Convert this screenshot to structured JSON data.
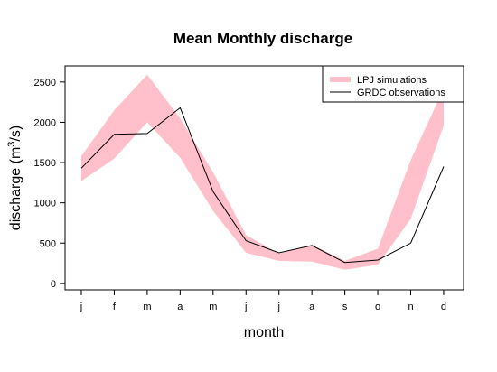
{
  "chart_data": {
    "type": "area",
    "title": "Mean Monthly discharge",
    "xlabel": "month",
    "ylabel": "discharge (m",
    "ylabel_sup": "3",
    "ylabel_suffix": "/s)",
    "categories": [
      "j",
      "f",
      "m",
      "a",
      "m",
      "j",
      "j",
      "a",
      "s",
      "o",
      "n",
      "d"
    ],
    "yticks": [
      0,
      500,
      1000,
      1500,
      2000,
      2500
    ],
    "ylim": [
      -80,
      2700
    ],
    "grid": false,
    "legend_position": "top-right",
    "colors": {
      "band": "#ffc0cb",
      "line": "#000000"
    },
    "series": [
      {
        "name": "LPJ simulations",
        "kind": "band",
        "lower": [
          1270,
          1550,
          2000,
          1560,
          900,
          380,
          280,
          270,
          170,
          230,
          800,
          1960
        ],
        "upper": [
          1580,
          2150,
          2590,
          2050,
          1380,
          600,
          370,
          480,
          280,
          430,
          1530,
          2420
        ]
      },
      {
        "name": "GRDC observations",
        "kind": "line",
        "values": [
          1430,
          1850,
          1860,
          2180,
          1140,
          530,
          380,
          470,
          260,
          290,
          500,
          1450
        ]
      }
    ]
  }
}
